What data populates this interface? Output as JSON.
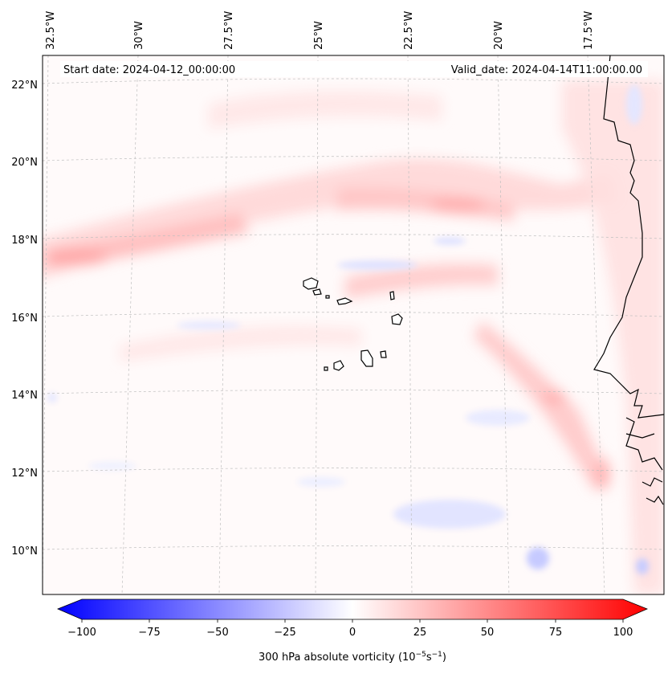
{
  "map": {
    "start_date_text": "Start date: 2024-04-12_00:00:00",
    "valid_date_text": "Valid_date: 2024-04-14T11:00:00.00",
    "lon_labels": [
      "32.5°W",
      "30°W",
      "27.5°W",
      "25°W",
      "22.5°W",
      "20°W",
      "17.5°W"
    ],
    "lat_labels": [
      "22°N",
      "20°N",
      "18°N",
      "16°N",
      "14°N",
      "12°N",
      "10°N"
    ],
    "field": "300 hPa absolute vorticity"
  },
  "colorbar": {
    "label_prefix": "300 hPa absolute vorticity (10",
    "label_exp1": "−5",
    "label_mid": "s",
    "label_exp2": "−1",
    "label_suffix": ")",
    "ticks": [
      "−100",
      "−75",
      "−50",
      "−25",
      "0",
      "25",
      "50",
      "75",
      "100"
    ],
    "min": -100,
    "max": 100,
    "colors": {
      "neg": "#0000ff",
      "zero": "#ffffff",
      "pos": "#ff0000"
    }
  }
}
